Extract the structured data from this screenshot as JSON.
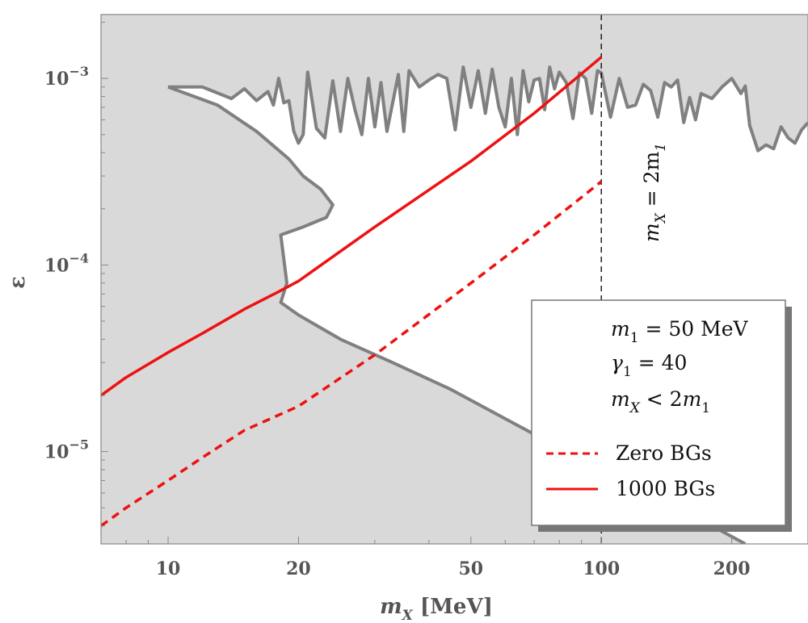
{
  "chart_data": {
    "type": "line",
    "x_scale": "log",
    "y_scale": "log",
    "xlim": [
      7,
      300
    ],
    "ylim": [
      3.2e-06,
      0.0022
    ],
    "xlabel": "m_X [MeV]",
    "ylabel": "ε",
    "x_ticks": [
      {
        "value": 10,
        "label": "10"
      },
      {
        "value": 20,
        "label": "20"
      },
      {
        "value": 50,
        "label": "50"
      },
      {
        "value": 100,
        "label": "100"
      },
      {
        "value": 200,
        "label": "200"
      }
    ],
    "y_ticks": [
      {
        "value": 1e-05,
        "base": "10",
        "exp": "−5"
      },
      {
        "value": 0.0001,
        "base": "10",
        "exp": "−4"
      },
      {
        "value": 0.001,
        "base": "10",
        "exp": "−3"
      }
    ],
    "vline": {
      "x": 100,
      "label_main": "m",
      "label_sub": "X",
      "label_mid": " = 2m",
      "label_sub2": "1"
    },
    "excluded_region_color": "#d9d9d9",
    "boundary_color": "#808080",
    "series": [
      {
        "name": "1000 BGs",
        "style": "solid",
        "color": "#ee1111",
        "x": [
          7,
          8,
          10,
          12,
          15,
          18,
          20,
          30,
          50,
          70,
          100
        ],
        "y": [
          2e-05,
          2.5e-05,
          3.4e-05,
          4.3e-05,
          5.8e-05,
          7.2e-05,
          8.2e-05,
          0.00016,
          0.00036,
          0.00065,
          0.0013
        ]
      },
      {
        "name": "Zero BGs",
        "style": "dashed",
        "color": "#ee1111",
        "x": [
          7,
          8,
          10,
          12,
          15,
          20,
          30,
          50,
          70,
          100
        ],
        "y": [
          4e-06,
          5e-06,
          7e-06,
          9.3e-06,
          1.3e-05,
          1.75e-05,
          3.3e-05,
          8e-05,
          0.000145,
          0.00028
        ]
      }
    ],
    "lower_boundary": {
      "x": [
        10,
        13,
        16,
        19,
        20.5,
        22.5,
        24,
        23.2,
        20.5,
        18.2,
        18.8,
        18.2,
        20,
        25,
        33,
        45,
        60,
        80,
        120,
        180,
        215
      ],
      "y": [
        0.0009,
        0.00072,
        0.00052,
        0.00037,
        0.0003,
        0.000255,
        0.00021,
        0.00018,
        0.00016,
        0.000145,
        8e-05,
        6.3e-05,
        5.4e-05,
        4e-05,
        3e-05,
        2.15e-05,
        1.5e-05,
        1.05e-05,
        6.5e-06,
        4e-06,
        3.2e-06
      ]
    },
    "upper_boundary": {
      "x": [
        10,
        12,
        14,
        15,
        16,
        17,
        17.5,
        18,
        18.5,
        19,
        19.5,
        20,
        20.5,
        21,
        22,
        23,
        24,
        25,
        26,
        27,
        28,
        29,
        30,
        31,
        32,
        34,
        35,
        36,
        38,
        40,
        42,
        44,
        46,
        48,
        50,
        52,
        54,
        56,
        58,
        60,
        62,
        64,
        66,
        68,
        70,
        72,
        74,
        76,
        78,
        80,
        83,
        86,
        89,
        92,
        95,
        98,
        100,
        105,
        110,
        115,
        120,
        125,
        130,
        135,
        140,
        145,
        150,
        155,
        160,
        165,
        170,
        180,
        190,
        200,
        210,
        215,
        220,
        230,
        240,
        250,
        260,
        270,
        280,
        290,
        300
      ],
      "y": [
        0.0009,
        0.0009,
        0.00078,
        0.00088,
        0.00076,
        0.00085,
        0.00072,
        0.001,
        0.00074,
        0.00076,
        0.00052,
        0.00045,
        0.0005,
        0.00108,
        0.00054,
        0.00048,
        0.00097,
        0.00052,
        0.001,
        0.00068,
        0.0005,
        0.001,
        0.00055,
        0.00095,
        0.00052,
        0.00105,
        0.00052,
        0.0011,
        0.0009,
        0.00098,
        0.00105,
        0.001,
        0.00053,
        0.00115,
        0.0007,
        0.0011,
        0.00065,
        0.00112,
        0.0007,
        0.00055,
        0.001,
        0.0005,
        0.0011,
        0.00075,
        0.00098,
        0.001,
        0.00068,
        0.00115,
        0.00088,
        0.00108,
        0.00095,
        0.00061,
        0.00107,
        0.001,
        0.00065,
        0.0011,
        0.00107,
        0.00062,
        0.001,
        0.0007,
        0.00072,
        0.00093,
        0.00086,
        0.00062,
        0.00095,
        0.0009,
        0.00098,
        0.00058,
        0.00079,
        0.0006,
        0.00083,
        0.00078,
        0.0009,
        0.001,
        0.00083,
        0.00091,
        0.00056,
        0.00041,
        0.00044,
        0.00042,
        0.00055,
        0.00048,
        0.00045,
        0.00053,
        0.00058
      ]
    },
    "legend": {
      "placement": "bottom-right",
      "params": [
        {
          "main": "m",
          "sub": "1",
          "rest": " = 50 MeV"
        },
        {
          "main": "γ",
          "sub": "1",
          "rest": " = 40"
        },
        {
          "main": "m",
          "sub": "X",
          "rest": " < 2",
          "main2": "m",
          "sub2": "1"
        }
      ],
      "entries": [
        {
          "label": "Zero BGs",
          "style": "dashed"
        },
        {
          "label": "1000 BGs",
          "style": "solid"
        }
      ]
    }
  }
}
